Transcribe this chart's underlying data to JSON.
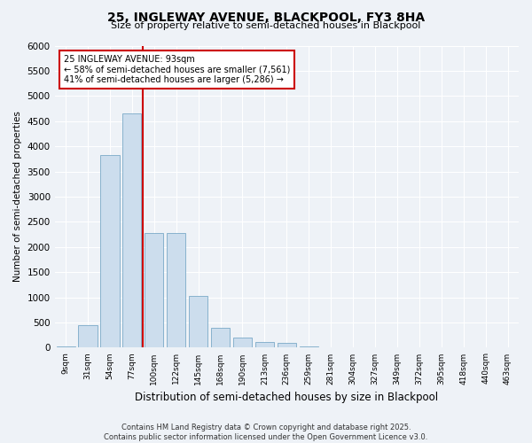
{
  "title_line1": "25, INGLEWAY AVENUE, BLACKPOOL, FY3 8HA",
  "title_line2": "Size of property relative to semi-detached houses in Blackpool",
  "xlabel": "Distribution of semi-detached houses by size in Blackpool",
  "ylabel": "Number of semi-detached properties",
  "categories": [
    "9sqm",
    "31sqm",
    "54sqm",
    "77sqm",
    "100sqm",
    "122sqm",
    "145sqm",
    "168sqm",
    "190sqm",
    "213sqm",
    "236sqm",
    "259sqm",
    "281sqm",
    "304sqm",
    "327sqm",
    "349sqm",
    "372sqm",
    "395sqm",
    "418sqm",
    "440sqm",
    "463sqm"
  ],
  "bar_values": [
    30,
    450,
    3820,
    4650,
    2280,
    2280,
    1020,
    390,
    195,
    110,
    100,
    30,
    0,
    0,
    0,
    0,
    0,
    0,
    0,
    0,
    0
  ],
  "bar_color": "#ccdded",
  "bar_edge_color": "#7aaac8",
  "vline_color": "#cc0000",
  "vline_bin_index": 4,
  "annotation_title": "25 INGLEWAY AVENUE: 93sqm",
  "annotation_line1": "← 58% of semi-detached houses are smaller (7,561)",
  "annotation_line2": "41% of semi-detached houses are larger (5,286) →",
  "annotation_box_color": "#cc0000",
  "ylim": [
    0,
    6000
  ],
  "yticks": [
    0,
    500,
    1000,
    1500,
    2000,
    2500,
    3000,
    3500,
    4000,
    4500,
    5000,
    5500,
    6000
  ],
  "footer_line1": "Contains HM Land Registry data © Crown copyright and database right 2025.",
  "footer_line2": "Contains public sector information licensed under the Open Government Licence v3.0.",
  "bg_color": "#eef2f7",
  "plot_bg_color": "#eef2f7"
}
